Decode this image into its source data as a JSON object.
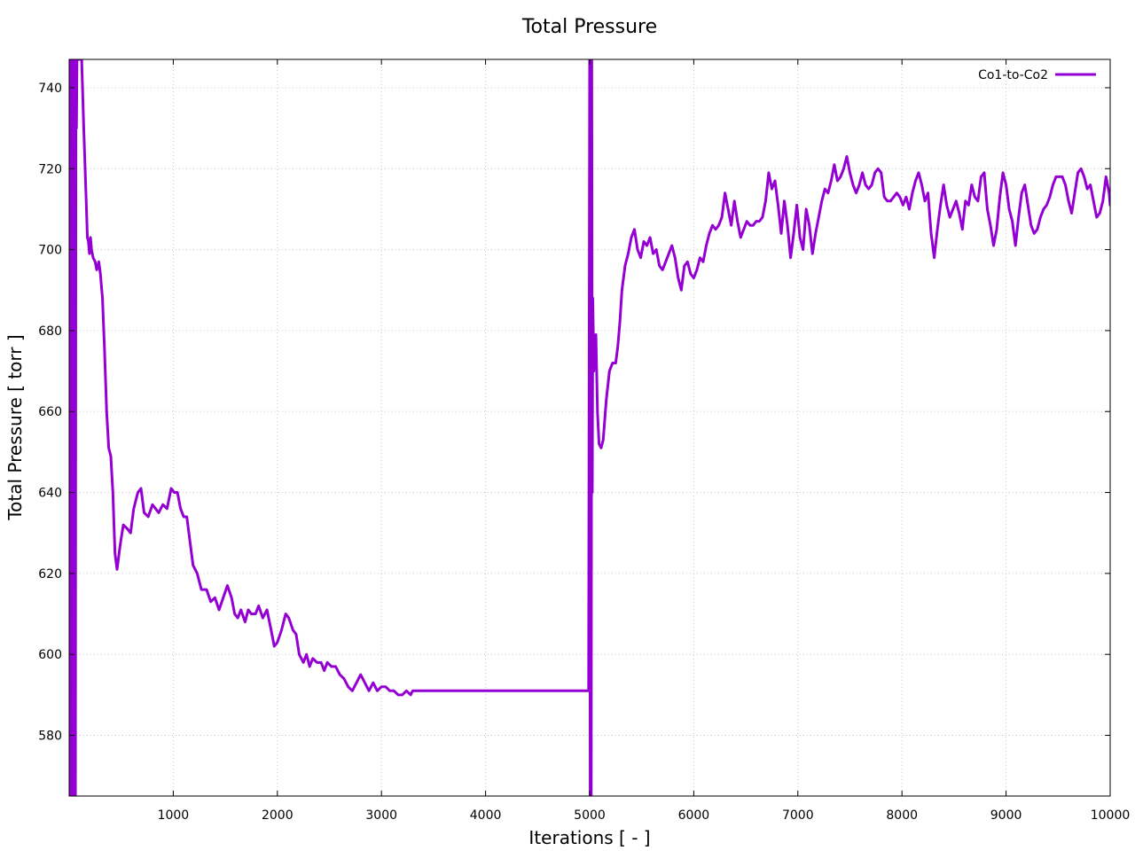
{
  "chart_data": {
    "type": "line",
    "title": "Total Pressure",
    "xlabel": "Iterations [ - ]",
    "ylabel": "Total Pressure [ torr ]",
    "xlim": [
      0,
      10000
    ],
    "ylim": [
      565,
      747
    ],
    "x_ticks": [
      1000,
      2000,
      3000,
      4000,
      5000,
      6000,
      7000,
      8000,
      9000,
      10000
    ],
    "y_ticks": [
      580,
      600,
      620,
      640,
      660,
      680,
      700,
      720,
      740
    ],
    "grid": true,
    "legend_position": "top-right",
    "series": [
      {
        "name": "Co1-to-Co2",
        "color": "#9400d3",
        "points": [
          [
            10,
            565
          ],
          [
            15,
            747
          ],
          [
            20,
            565
          ],
          [
            25,
            747
          ],
          [
            30,
            610
          ],
          [
            35,
            747
          ],
          [
            40,
            740
          ],
          [
            45,
            565
          ],
          [
            50,
            747
          ],
          [
            55,
            650
          ],
          [
            60,
            565
          ],
          [
            65,
            740
          ],
          [
            70,
            730
          ],
          [
            75,
            747
          ],
          [
            120,
            747
          ],
          [
            140,
            730
          ],
          [
            160,
            715
          ],
          [
            175,
            703
          ],
          [
            185,
            702
          ],
          [
            195,
            699
          ],
          [
            205,
            703
          ],
          [
            215,
            700
          ],
          [
            230,
            698
          ],
          [
            250,
            697
          ],
          [
            265,
            695
          ],
          [
            285,
            697
          ],
          [
            300,
            694
          ],
          [
            320,
            688
          ],
          [
            340,
            675
          ],
          [
            360,
            660
          ],
          [
            380,
            651
          ],
          [
            400,
            649
          ],
          [
            420,
            640
          ],
          [
            440,
            625
          ],
          [
            460,
            621
          ],
          [
            490,
            627
          ],
          [
            520,
            632
          ],
          [
            560,
            631
          ],
          [
            590,
            630
          ],
          [
            620,
            636
          ],
          [
            660,
            640
          ],
          [
            690,
            641
          ],
          [
            720,
            635
          ],
          [
            760,
            634
          ],
          [
            800,
            637
          ],
          [
            830,
            636
          ],
          [
            860,
            635
          ],
          [
            900,
            637
          ],
          [
            940,
            636
          ],
          [
            980,
            641
          ],
          [
            1010,
            640
          ],
          [
            1040,
            640
          ],
          [
            1070,
            636
          ],
          [
            1100,
            634
          ],
          [
            1130,
            634
          ],
          [
            1160,
            628
          ],
          [
            1190,
            622
          ],
          [
            1230,
            620
          ],
          [
            1270,
            616
          ],
          [
            1320,
            616
          ],
          [
            1360,
            613
          ],
          [
            1400,
            614
          ],
          [
            1440,
            611
          ],
          [
            1480,
            614
          ],
          [
            1520,
            617
          ],
          [
            1560,
            614
          ],
          [
            1590,
            610
          ],
          [
            1620,
            609
          ],
          [
            1650,
            611
          ],
          [
            1690,
            608
          ],
          [
            1720,
            611
          ],
          [
            1750,
            610
          ],
          [
            1790,
            610
          ],
          [
            1820,
            612
          ],
          [
            1860,
            609
          ],
          [
            1900,
            611
          ],
          [
            1940,
            606
          ],
          [
            1970,
            602
          ],
          [
            2000,
            603
          ],
          [
            2040,
            606
          ],
          [
            2080,
            610
          ],
          [
            2110,
            609
          ],
          [
            2150,
            606
          ],
          [
            2180,
            605
          ],
          [
            2210,
            600
          ],
          [
            2250,
            598
          ],
          [
            2280,
            600
          ],
          [
            2310,
            597
          ],
          [
            2340,
            599
          ],
          [
            2380,
            598
          ],
          [
            2420,
            598
          ],
          [
            2450,
            596
          ],
          [
            2480,
            598
          ],
          [
            2520,
            597
          ],
          [
            2560,
            597
          ],
          [
            2600,
            595
          ],
          [
            2640,
            594
          ],
          [
            2680,
            592
          ],
          [
            2720,
            591
          ],
          [
            2760,
            593
          ],
          [
            2800,
            595
          ],
          [
            2840,
            593
          ],
          [
            2880,
            591
          ],
          [
            2920,
            593
          ],
          [
            2960,
            591
          ],
          [
            3000,
            592
          ],
          [
            3040,
            592
          ],
          [
            3080,
            591
          ],
          [
            3120,
            591
          ],
          [
            3160,
            590
          ],
          [
            3200,
            590
          ],
          [
            3240,
            591
          ],
          [
            3280,
            590
          ],
          [
            3300,
            591
          ],
          [
            3400,
            591
          ],
          [
            3600,
            591
          ],
          [
            3800,
            591
          ],
          [
            4000,
            591
          ],
          [
            4200,
            591
          ],
          [
            4400,
            591
          ],
          [
            4600,
            591
          ],
          [
            4800,
            591
          ],
          [
            4990,
            591
          ],
          [
            5000,
            747
          ],
          [
            5005,
            565
          ],
          [
            5010,
            747
          ],
          [
            5015,
            565
          ],
          [
            5020,
            747
          ],
          [
            5025,
            640
          ],
          [
            5030,
            688
          ],
          [
            5040,
            670
          ],
          [
            5050,
            675
          ],
          [
            5060,
            679
          ],
          [
            5075,
            660
          ],
          [
            5090,
            652
          ],
          [
            5110,
            651
          ],
          [
            5130,
            653
          ],
          [
            5160,
            663
          ],
          [
            5190,
            670
          ],
          [
            5220,
            672
          ],
          [
            5250,
            672
          ],
          [
            5270,
            676
          ],
          [
            5290,
            682
          ],
          [
            5310,
            690
          ],
          [
            5340,
            696
          ],
          [
            5370,
            699
          ],
          [
            5400,
            703
          ],
          [
            5430,
            705
          ],
          [
            5460,
            700
          ],
          [
            5490,
            698
          ],
          [
            5520,
            702
          ],
          [
            5550,
            701
          ],
          [
            5580,
            703
          ],
          [
            5610,
            699
          ],
          [
            5640,
            700
          ],
          [
            5670,
            696
          ],
          [
            5700,
            695
          ],
          [
            5730,
            697
          ],
          [
            5760,
            699
          ],
          [
            5790,
            701
          ],
          [
            5820,
            698
          ],
          [
            5850,
            693
          ],
          [
            5880,
            690
          ],
          [
            5910,
            696
          ],
          [
            5940,
            697
          ],
          [
            5970,
            694
          ],
          [
            6000,
            693
          ],
          [
            6030,
            695
          ],
          [
            6060,
            698
          ],
          [
            6090,
            697
          ],
          [
            6120,
            701
          ],
          [
            6150,
            704
          ],
          [
            6180,
            706
          ],
          [
            6210,
            705
          ],
          [
            6240,
            706
          ],
          [
            6270,
            708
          ],
          [
            6300,
            714
          ],
          [
            6330,
            710
          ],
          [
            6360,
            706
          ],
          [
            6390,
            712
          ],
          [
            6420,
            707
          ],
          [
            6450,
            703
          ],
          [
            6480,
            705
          ],
          [
            6510,
            707
          ],
          [
            6540,
            706
          ],
          [
            6570,
            706
          ],
          [
            6600,
            707
          ],
          [
            6630,
            707
          ],
          [
            6660,
            708
          ],
          [
            6690,
            712
          ],
          [
            6720,
            719
          ],
          [
            6750,
            715
          ],
          [
            6780,
            717
          ],
          [
            6810,
            711
          ],
          [
            6840,
            704
          ],
          [
            6870,
            712
          ],
          [
            6900,
            706
          ],
          [
            6930,
            698
          ],
          [
            6960,
            704
          ],
          [
            6990,
            711
          ],
          [
            7020,
            703
          ],
          [
            7050,
            700
          ],
          [
            7080,
            710
          ],
          [
            7110,
            706
          ],
          [
            7140,
            699
          ],
          [
            7170,
            704
          ],
          [
            7200,
            708
          ],
          [
            7230,
            712
          ],
          [
            7260,
            715
          ],
          [
            7290,
            714
          ],
          [
            7320,
            717
          ],
          [
            7350,
            721
          ],
          [
            7380,
            717
          ],
          [
            7410,
            718
          ],
          [
            7440,
            720
          ],
          [
            7470,
            723
          ],
          [
            7500,
            719
          ],
          [
            7530,
            716
          ],
          [
            7560,
            714
          ],
          [
            7590,
            716
          ],
          [
            7620,
            719
          ],
          [
            7650,
            716
          ],
          [
            7680,
            715
          ],
          [
            7710,
            716
          ],
          [
            7740,
            719
          ],
          [
            7770,
            720
          ],
          [
            7800,
            719
          ],
          [
            7830,
            713
          ],
          [
            7860,
            712
          ],
          [
            7890,
            712
          ],
          [
            7920,
            713
          ],
          [
            7950,
            714
          ],
          [
            7980,
            713
          ],
          [
            8010,
            711
          ],
          [
            8040,
            713
          ],
          [
            8070,
            710
          ],
          [
            8100,
            714
          ],
          [
            8130,
            717
          ],
          [
            8160,
            719
          ],
          [
            8190,
            716
          ],
          [
            8220,
            712
          ],
          [
            8250,
            714
          ],
          [
            8280,
            704
          ],
          [
            8310,
            698
          ],
          [
            8340,
            705
          ],
          [
            8370,
            711
          ],
          [
            8400,
            716
          ],
          [
            8430,
            711
          ],
          [
            8460,
            708
          ],
          [
            8490,
            710
          ],
          [
            8520,
            712
          ],
          [
            8550,
            709
          ],
          [
            8580,
            705
          ],
          [
            8610,
            712
          ],
          [
            8640,
            711
          ],
          [
            8670,
            716
          ],
          [
            8700,
            713
          ],
          [
            8730,
            712
          ],
          [
            8760,
            718
          ],
          [
            8790,
            719
          ],
          [
            8820,
            710
          ],
          [
            8850,
            706
          ],
          [
            8880,
            701
          ],
          [
            8910,
            705
          ],
          [
            8940,
            713
          ],
          [
            8970,
            719
          ],
          [
            9000,
            716
          ],
          [
            9030,
            710
          ],
          [
            9060,
            707
          ],
          [
            9090,
            701
          ],
          [
            9120,
            708
          ],
          [
            9150,
            714
          ],
          [
            9180,
            716
          ],
          [
            9210,
            711
          ],
          [
            9240,
            706
          ],
          [
            9270,
            704
          ],
          [
            9300,
            705
          ],
          [
            9330,
            708
          ],
          [
            9360,
            710
          ],
          [
            9390,
            711
          ],
          [
            9420,
            713
          ],
          [
            9450,
            716
          ],
          [
            9480,
            718
          ],
          [
            9510,
            718
          ],
          [
            9540,
            718
          ],
          [
            9570,
            716
          ],
          [
            9600,
            712
          ],
          [
            9630,
            709
          ],
          [
            9660,
            714
          ],
          [
            9690,
            719
          ],
          [
            9720,
            720
          ],
          [
            9750,
            718
          ],
          [
            9780,
            715
          ],
          [
            9810,
            716
          ],
          [
            9840,
            712
          ],
          [
            9870,
            708
          ],
          [
            9900,
            709
          ],
          [
            9930,
            712
          ],
          [
            9960,
            718
          ],
          [
            9990,
            714
          ],
          [
            10000,
            711
          ]
        ]
      }
    ]
  }
}
